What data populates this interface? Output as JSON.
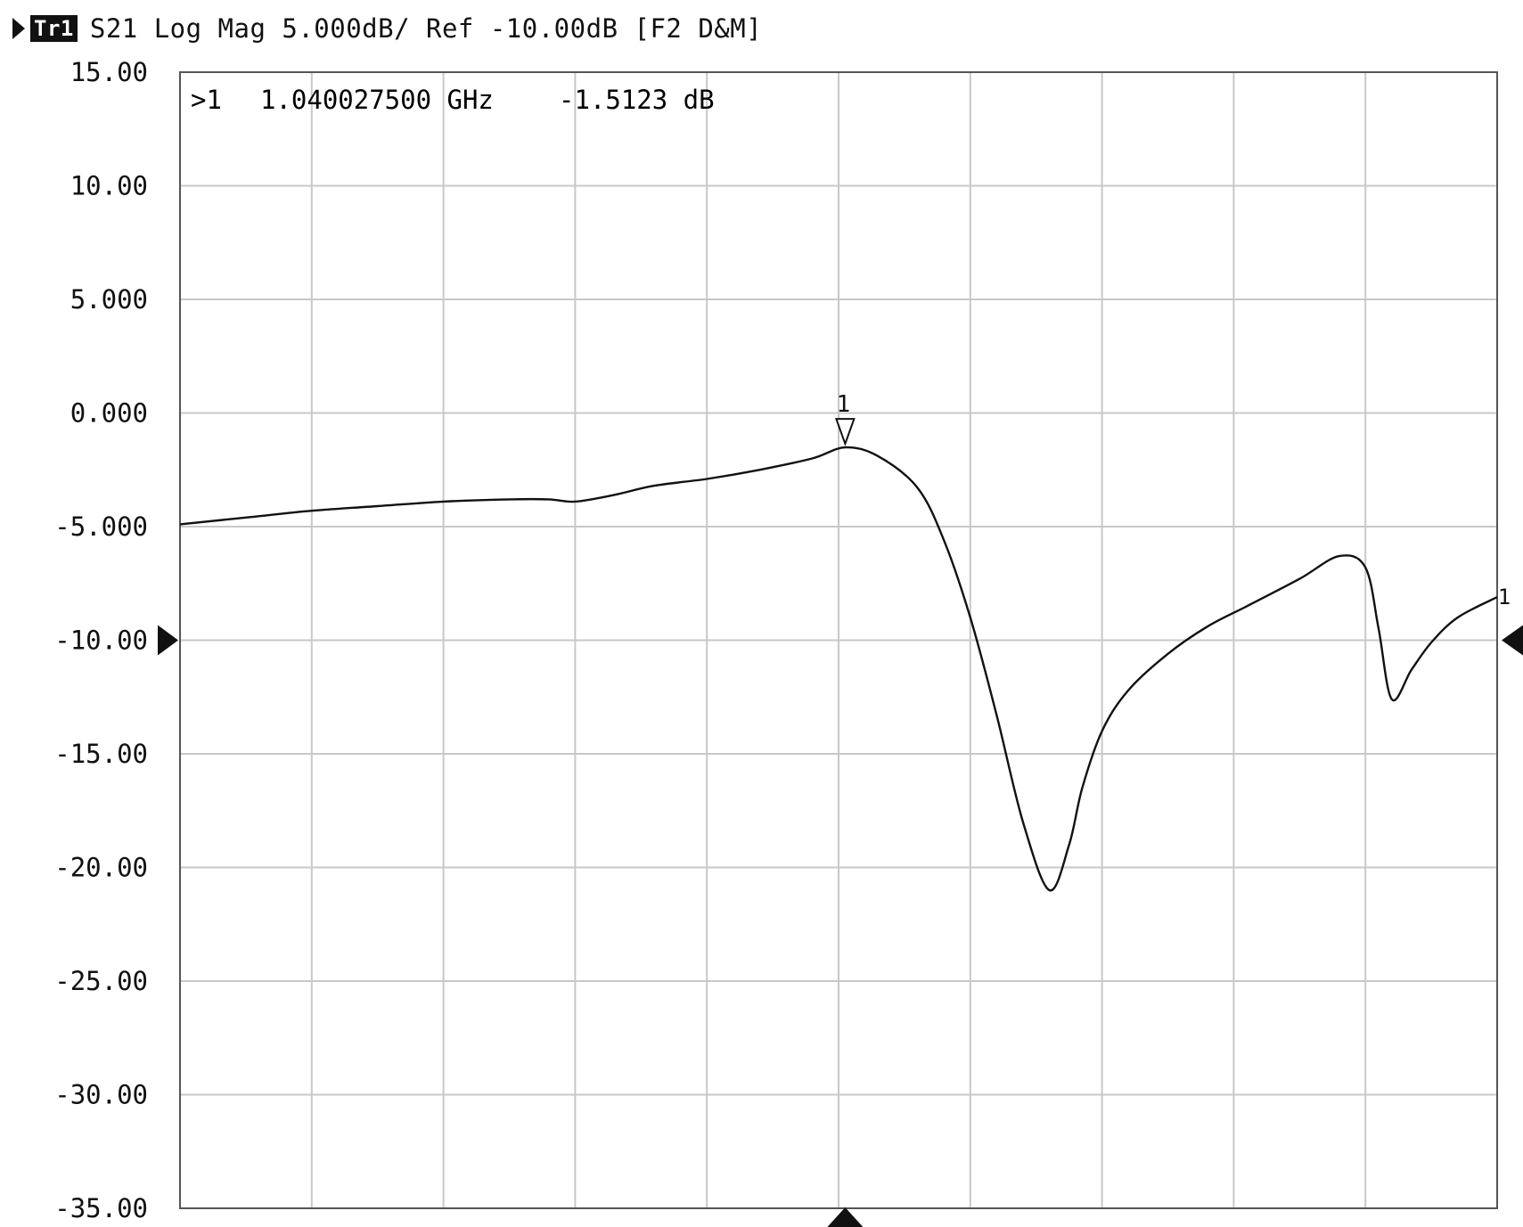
{
  "header": {
    "trace_badge": "Tr1",
    "trace_info": "S21 Log Mag 5.000dB/ Ref -10.00dB [F2 D&M]"
  },
  "marker_readout": {
    "index_label": ">1",
    "frequency": "1.040027500 GHz",
    "value": "-1.5123 dB"
  },
  "colors": {
    "trace": "#111111",
    "grid": "#c8c8c8",
    "frame": "#555555",
    "background": "#ffffff"
  },
  "chart_data": {
    "type": "line",
    "title": "",
    "xlabel": "",
    "ylabel": "",
    "y_tick_labels": [
      "15.00",
      "10.00",
      "5.000",
      "0.000",
      "-5.000",
      "-10.00",
      "-15.00",
      "-20.00",
      "-25.00",
      "-30.00",
      "-35.00"
    ],
    "y_ticks": [
      15,
      10,
      5,
      0,
      -5,
      -10,
      -15,
      -20,
      -25,
      -30,
      -35
    ],
    "ylim": [
      -35,
      15
    ],
    "x_divisions": 10,
    "xlim": [
      0,
      10
    ],
    "grid": true,
    "reference_level": -10,
    "marker": {
      "label": "1",
      "x": 5.05,
      "y": -1.5123
    },
    "end_marker_label": "1",
    "center_marker_x": 5.05,
    "series": [
      {
        "x": [
          0,
          0.5,
          1,
          1.5,
          2,
          2.5,
          2.8,
          3.0,
          3.3,
          3.6,
          4.0,
          4.4,
          4.8,
          5.05,
          5.3,
          5.6,
          5.8,
          6.0,
          6.2,
          6.4,
          6.6,
          6.75,
          6.85,
          7.0,
          7.2,
          7.5,
          7.8,
          8.1,
          8.5,
          8.8,
          9.0,
          9.1,
          9.2,
          9.35,
          9.5,
          9.7,
          10.0
        ],
        "y": [
          -4.9,
          -4.6,
          -4.3,
          -4.1,
          -3.9,
          -3.8,
          -3.8,
          -3.9,
          -3.6,
          -3.2,
          -2.9,
          -2.5,
          -2.0,
          -1.5123,
          -1.9,
          -3.3,
          -5.6,
          -9.0,
          -13.3,
          -18.0,
          -21.0,
          -19.0,
          -16.5,
          -14.0,
          -12.2,
          -10.6,
          -9.4,
          -8.5,
          -7.3,
          -6.3,
          -6.8,
          -9.5,
          -12.6,
          -11.3,
          -10.1,
          -9.0,
          -8.1
        ]
      }
    ]
  }
}
